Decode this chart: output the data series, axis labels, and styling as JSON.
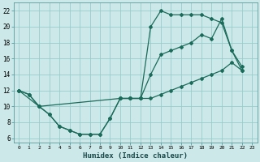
{
  "xlabel": "Humidex (Indice chaleur)",
  "bg_color": "#cce8e8",
  "grid_color": "#99cccc",
  "line_color": "#1a6b5a",
  "xlim": [
    -0.5,
    23.5
  ],
  "ylim": [
    5.5,
    23.0
  ],
  "xticks": [
    0,
    1,
    2,
    3,
    4,
    5,
    6,
    7,
    8,
    9,
    10,
    11,
    12,
    13,
    14,
    15,
    16,
    17,
    18,
    19,
    20,
    21,
    22,
    23
  ],
  "yticks": [
    6,
    8,
    10,
    12,
    14,
    16,
    18,
    20,
    22
  ],
  "line1_x": [
    0,
    1,
    2,
    3,
    4,
    5,
    6,
    7,
    8,
    9,
    10,
    11,
    12,
    13,
    14,
    15,
    16,
    17,
    18,
    19,
    20,
    21,
    22
  ],
  "line1_y": [
    12,
    11.5,
    10,
    9,
    7.5,
    7,
    6.5,
    6.5,
    6.5,
    8.5,
    11,
    11,
    11,
    20,
    22,
    21.5,
    21.5,
    21.5,
    21.5,
    21,
    20.5,
    17,
    14.5
  ],
  "line2_x": [
    0,
    1,
    2,
    3,
    4,
    5,
    6,
    7,
    8,
    9,
    10,
    11,
    12,
    13,
    14,
    15,
    16,
    17,
    18,
    19,
    20,
    21,
    22
  ],
  "line2_y": [
    12,
    11.5,
    10,
    9,
    7.5,
    7,
    6.5,
    6.5,
    6.5,
    8.5,
    11,
    11,
    11,
    14,
    16.5,
    17,
    17.5,
    18,
    19,
    18.5,
    21,
    17,
    15
  ],
  "line3_x": [
    0,
    2,
    10,
    11,
    12,
    13,
    14,
    15,
    16,
    17,
    18,
    19,
    20,
    21,
    22
  ],
  "line3_y": [
    12,
    10,
    11,
    11,
    11,
    11,
    11.5,
    12,
    12.5,
    13,
    13.5,
    14,
    14.5,
    15.5,
    14.5
  ]
}
